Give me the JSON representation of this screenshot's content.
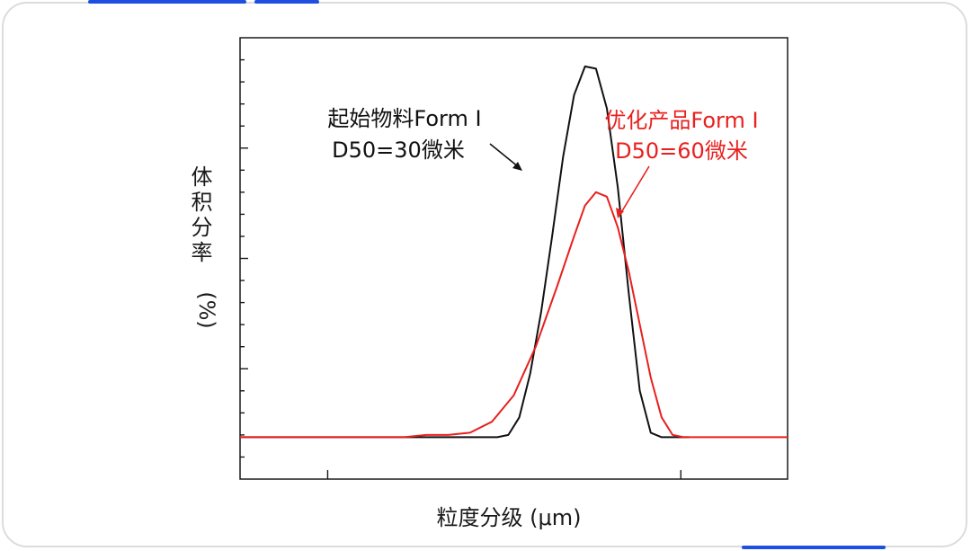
{
  "colors": {
    "accent": "#1f4fe0",
    "frame": "#dcdcdc",
    "axis": "#1a1a1a",
    "series_black": "#111111",
    "series_red": "#e8201e"
  },
  "chart_data": {
    "type": "line",
    "xlabel": "粒度分级 (μm)",
    "ylabel_main": "体积分率",
    "ylabel_unit": "(%)",
    "xlim": [
      0,
      100
    ],
    "ylim": [
      0,
      100
    ],
    "grid": false,
    "annotations": [
      {
        "series_index": 0,
        "lines": [
          "起始物料Form I",
          "D50=30微米"
        ],
        "color": "#111111"
      },
      {
        "series_index": 1,
        "lines": [
          "优化产品Form I",
          "D50=60微米"
        ],
        "color": "#e8201e"
      }
    ],
    "series": [
      {
        "name": "起始物料Form I",
        "color": "#111111",
        "points": [
          [
            0,
            9.5
          ],
          [
            45,
            9.5
          ],
          [
            47,
            9.5
          ],
          [
            49,
            10
          ],
          [
            51,
            14
          ],
          [
            53,
            24
          ],
          [
            55,
            38
          ],
          [
            57,
            55
          ],
          [
            59,
            73
          ],
          [
            61,
            87
          ],
          [
            63,
            93.5
          ],
          [
            65,
            93
          ],
          [
            67,
            84
          ],
          [
            69,
            66
          ],
          [
            71,
            42
          ],
          [
            73,
            20
          ],
          [
            75,
            10.5
          ],
          [
            77,
            9.5
          ],
          [
            82,
            9.5
          ]
        ]
      },
      {
        "name": "优化产品Form I",
        "color": "#e8201e",
        "points": [
          [
            0,
            9.5
          ],
          [
            30,
            9.5
          ],
          [
            34,
            10
          ],
          [
            38,
            10
          ],
          [
            42,
            10.5
          ],
          [
            46,
            13
          ],
          [
            50,
            19
          ],
          [
            54,
            30
          ],
          [
            58,
            44
          ],
          [
            61,
            55
          ],
          [
            63,
            62
          ],
          [
            65,
            65
          ],
          [
            67,
            64
          ],
          [
            69,
            57
          ],
          [
            71,
            47
          ],
          [
            73,
            35
          ],
          [
            75,
            23
          ],
          [
            77,
            14
          ],
          [
            79,
            10
          ],
          [
            81,
            9.5
          ],
          [
            100,
            9.5
          ]
        ]
      }
    ]
  }
}
